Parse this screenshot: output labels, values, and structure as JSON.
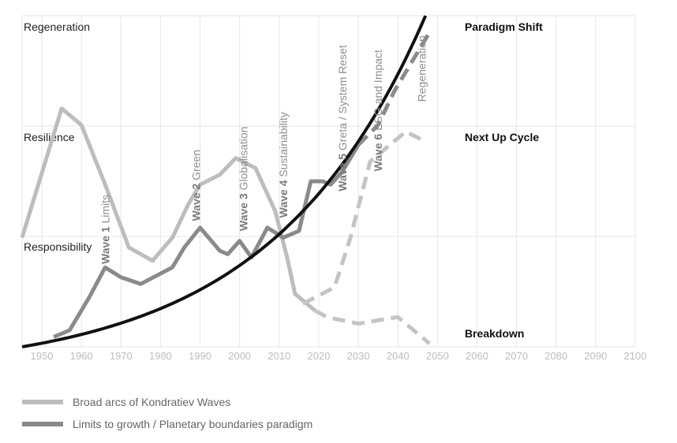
{
  "chart_data": {
    "type": "line",
    "xlim": [
      1945,
      2100
    ],
    "x_ticks": [
      "1950",
      "1960",
      "1970",
      "1980",
      "1990",
      "2000",
      "2010",
      "2020",
      "2030",
      "2040",
      "2050",
      "2060",
      "2070",
      "2080",
      "2090",
      "2100"
    ],
    "levels": [
      "Regeneration",
      "Resilience",
      "Responsibility"
    ],
    "series": [
      {
        "name": "Broad arcs of Kondratiev Waves",
        "color": "#bdbdbd",
        "points": [
          [
            1945,
            0.33
          ],
          [
            1955,
            0.72
          ],
          [
            1960,
            0.67
          ],
          [
            1966,
            0.49
          ],
          [
            1972,
            0.3
          ],
          [
            1978,
            0.26
          ],
          [
            1983,
            0.33
          ],
          [
            1987,
            0.43
          ],
          [
            1990,
            0.49
          ],
          [
            1995,
            0.52
          ],
          [
            1999,
            0.57
          ],
          [
            2004,
            0.54
          ],
          [
            2009,
            0.41
          ],
          [
            2012,
            0.27
          ],
          [
            2014,
            0.16
          ],
          [
            2019,
            0.11
          ]
        ]
      },
      {
        "name": "Breakdown branch",
        "color": "#c4c4c4",
        "dashed": true,
        "points": [
          [
            2019,
            0.11
          ],
          [
            2022,
            0.09
          ],
          [
            2030,
            0.07
          ],
          [
            2040,
            0.09
          ],
          [
            2046,
            0.03
          ],
          [
            2048,
            0.01
          ]
        ]
      },
      {
        "name": "Next Up Cycle branch",
        "color": "#c4c4c4",
        "dashed": true,
        "points": [
          [
            2016,
            0.13
          ],
          [
            2024,
            0.18
          ],
          [
            2028,
            0.33
          ],
          [
            2033,
            0.56
          ],
          [
            2042,
            0.65
          ],
          [
            2047,
            0.62
          ]
        ]
      },
      {
        "name": "Limits to growth / Planetary boundaries paradigm",
        "color": "#8a8a8a",
        "points": [
          [
            1953,
            0.03
          ],
          [
            1957,
            0.05
          ],
          [
            1962,
            0.15
          ],
          [
            1966,
            0.24
          ],
          [
            1970,
            0.21
          ],
          [
            1975,
            0.19
          ],
          [
            1983,
            0.24
          ],
          [
            1986,
            0.3
          ],
          [
            1990,
            0.36
          ],
          [
            1995,
            0.29
          ],
          [
            1997,
            0.28
          ],
          [
            2000,
            0.32
          ],
          [
            2003,
            0.27
          ],
          [
            2007,
            0.36
          ],
          [
            2011,
            0.33
          ],
          [
            2015,
            0.35
          ],
          [
            2018,
            0.5
          ],
          [
            2021,
            0.5
          ],
          [
            2023,
            0.49
          ],
          [
            2026,
            0.53
          ],
          [
            2030,
            0.61
          ]
        ]
      },
      {
        "name": "Wave 6 dashed",
        "color": "#8a8a8a",
        "dashed": true,
        "points": [
          [
            2030,
            0.61
          ],
          [
            2035,
            0.67
          ],
          [
            2039,
            0.77
          ],
          [
            2044,
            0.87
          ],
          [
            2048,
            0.95
          ]
        ]
      },
      {
        "name": "Paradigm Shift curve",
        "color": "#111111",
        "curve": "exponential",
        "start": [
          1945,
          0.0
        ],
        "end": [
          2047,
          1.0
        ]
      }
    ],
    "wave_labels": [
      {
        "bold": "Wave 1",
        "text": " Limits",
        "x": 1967,
        "y": 0.25
      },
      {
        "bold": "Wave 2",
        "text": " Green",
        "x": 1990,
        "y": 0.38
      },
      {
        "bold": "Wave 3",
        "text": " Globalisation",
        "x": 2002,
        "y": 0.35
      },
      {
        "bold": "Wave 4",
        "text": " Sustainability",
        "x": 2012,
        "y": 0.39
      },
      {
        "bold": "Wave 5",
        "text": " Greta / System Reset",
        "x": 2027,
        "y": 0.47
      },
      {
        "bold": "Wave 6",
        "text": " ESG and Impact",
        "x": 2036,
        "y": 0.53
      },
      {
        "bold": "",
        "text": "Regeneration",
        "x": 2047,
        "y": 0.74
      }
    ],
    "end_labels": [
      "Paradigm Shift",
      "Next Up Cycle",
      "Breakdown"
    ]
  },
  "legend": {
    "items": [
      {
        "label": "Broad arcs of Kondratiev Waves",
        "color": "#bdbdbd"
      },
      {
        "label": "Limits to growth / Planetary boundaries paradigm",
        "color": "#8a8a8a"
      }
    ]
  }
}
